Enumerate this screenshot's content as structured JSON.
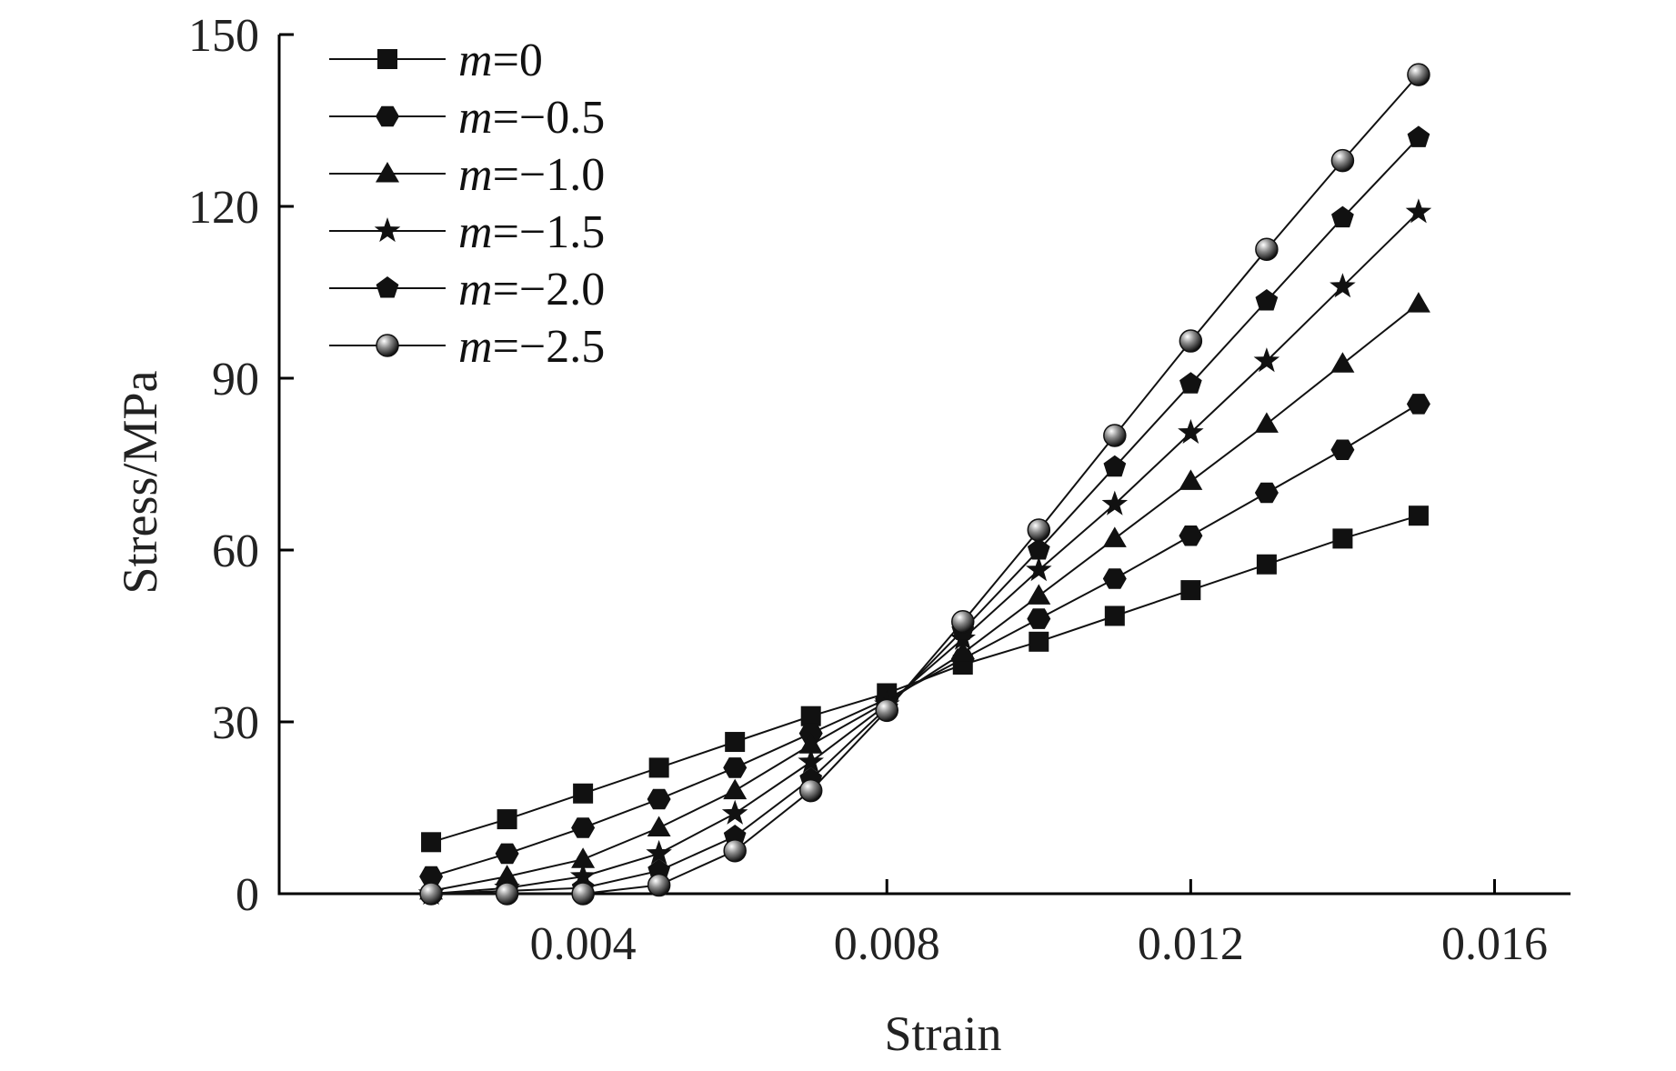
{
  "chart_data": {
    "type": "line",
    "xlabel": "Strain",
    "ylabel": "Stress/MPa",
    "xlim": [
      0.0,
      0.017
    ],
    "ylim": [
      0,
      150
    ],
    "xticks": [
      0.004,
      0.008,
      0.012,
      0.016
    ],
    "xtick_labels": [
      "0.004",
      "0.008",
      "0.012",
      "0.016"
    ],
    "yticks": [
      0,
      30,
      60,
      90,
      120,
      150
    ],
    "ytick_labels": [
      "0",
      "30",
      "60",
      "90",
      "120",
      "150"
    ],
    "grid": false,
    "legend_position": "top-left",
    "x": [
      0.002,
      0.003,
      0.004,
      0.005,
      0.006,
      0.007,
      0.008,
      0.009,
      0.01,
      0.011,
      0.012,
      0.013,
      0.014,
      0.015
    ],
    "series": [
      {
        "name": "m=0",
        "var": "m",
        "rest": "=0",
        "marker": "square",
        "values": [
          9,
          13,
          17.5,
          22,
          26.5,
          31,
          35,
          40,
          44,
          48.5,
          53,
          57.5,
          62,
          66
        ]
      },
      {
        "name": "m=−0.5",
        "var": "m",
        "rest": "=−0.5",
        "marker": "hexagon",
        "values": [
          3,
          7,
          11.5,
          16.5,
          22,
          28,
          34,
          41,
          48,
          55,
          62.5,
          70,
          77.5,
          85.5
        ]
      },
      {
        "name": "m=−1.0",
        "var": "m",
        "rest": "=−1.0",
        "marker": "triangle",
        "values": [
          0.5,
          3,
          6,
          11.5,
          18,
          26,
          33.5,
          42,
          52,
          62,
          72,
          82,
          92.5,
          103
        ]
      },
      {
        "name": "m=−1.5",
        "var": "m",
        "rest": "=−1.5",
        "marker": "star",
        "values": [
          0,
          1,
          3,
          7,
          14,
          23,
          33,
          44.5,
          56.5,
          68,
          80.5,
          93,
          106,
          119
        ]
      },
      {
        "name": "m=−2.0",
        "var": "m",
        "rest": "=−2.0",
        "marker": "pentagon",
        "values": [
          0,
          0.5,
          1,
          4,
          10,
          20,
          32.5,
          46,
          60,
          74.5,
          89,
          103.5,
          118,
          132
        ]
      },
      {
        "name": "m=−2.5",
        "var": "m",
        "rest": "=−2.5",
        "marker": "sphere",
        "values": [
          0,
          0,
          0,
          1.5,
          7.5,
          18,
          32,
          47.5,
          63.5,
          80,
          96.5,
          112.5,
          128,
          143
        ]
      }
    ]
  }
}
